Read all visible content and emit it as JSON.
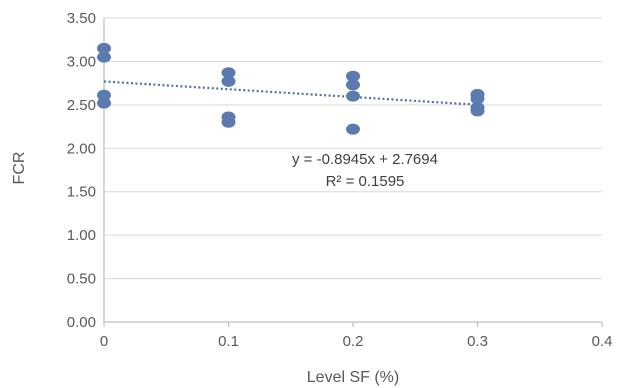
{
  "chart_data": {
    "type": "scatter",
    "title": "",
    "xlabel": "Level SF (%)",
    "ylabel": "FCR",
    "xlim": [
      0,
      0.4
    ],
    "ylim": [
      0,
      3.5
    ],
    "x_ticks": [
      0,
      0.1,
      0.2,
      0.3,
      0.4
    ],
    "x_tick_labels": [
      "0",
      "0.1",
      "0.2",
      "0.3",
      "0.4"
    ],
    "y_ticks": [
      0,
      0.5,
      1.0,
      1.5,
      2.0,
      2.5,
      3.0,
      3.5
    ],
    "y_tick_labels": [
      "0.00",
      "0.50",
      "1.00",
      "1.50",
      "2.00",
      "2.50",
      "3.00",
      "3.50"
    ],
    "grid": {
      "horizontal": true,
      "vertical": false
    },
    "legend": "none",
    "series": [
      {
        "x": [
          0,
          0,
          0,
          0,
          0.1,
          0.1,
          0.1,
          0.1,
          0.2,
          0.2,
          0.2,
          0.2,
          0.3,
          0.3,
          0.3,
          0.3
        ],
        "y": [
          3.15,
          3.05,
          2.61,
          2.52,
          2.87,
          2.77,
          2.36,
          2.3,
          2.83,
          2.73,
          2.6,
          2.22,
          2.62,
          2.57,
          2.47,
          2.43
        ],
        "color": "#5b7bb0"
      }
    ],
    "trendline": {
      "type": "linear",
      "slope": -0.8945,
      "intercept": 2.7694,
      "x_range": [
        0,
        0.3
      ],
      "style": "dotted",
      "color": "#4f6fa5",
      "equation_label": "y = -0.8945x + 2.7694",
      "r2_label": "R² = 0.1595"
    },
    "colors": {
      "axis": "#bfbfbf",
      "grid": "#d9d9d9",
      "text": "#595959"
    }
  }
}
